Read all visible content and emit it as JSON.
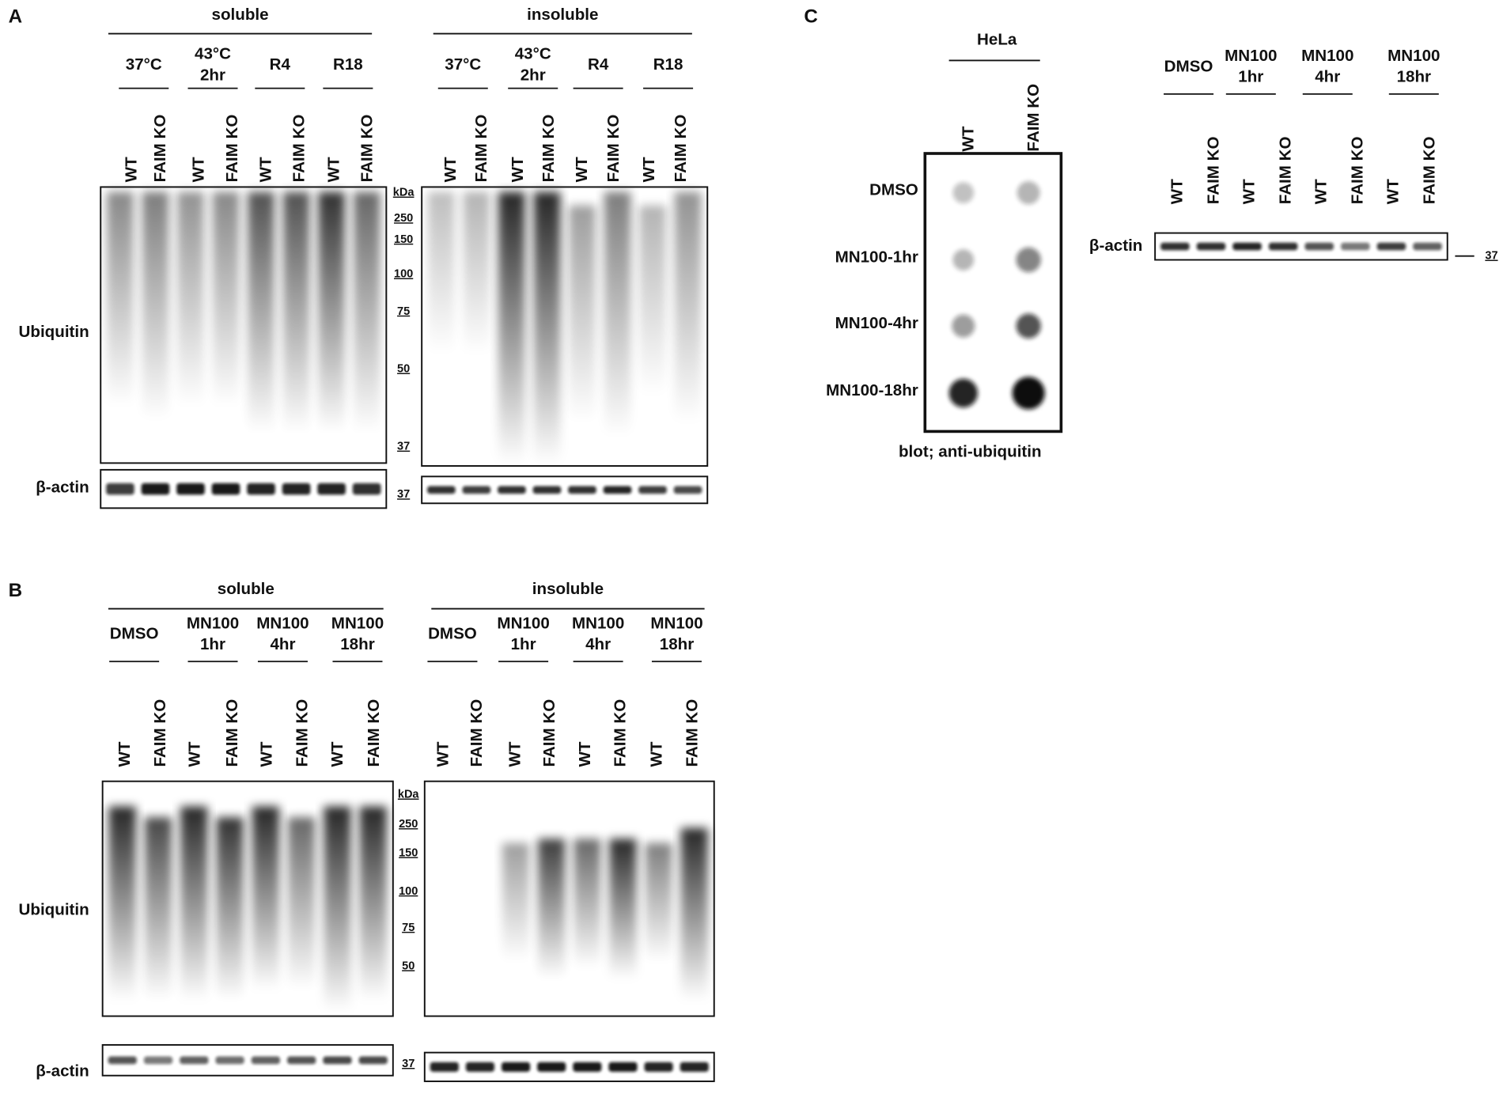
{
  "panel_a": {
    "label": "A",
    "blots": [
      {
        "title": "soluble",
        "conditions": [
          [
            "37°C"
          ],
          [
            "43°C",
            "2hr"
          ],
          [
            "R4"
          ],
          [
            "R18"
          ]
        ],
        "lanes": [
          "WT",
          "FAIM KO",
          "WT",
          "FAIM KO",
          "WT",
          "FAIM KO",
          "WT",
          "FAIM KO"
        ]
      },
      {
        "title": "insoluble",
        "conditions": [
          [
            "37°C"
          ],
          [
            "43°C",
            "2hr"
          ],
          [
            "R4"
          ],
          [
            "R18"
          ]
        ],
        "lanes": [
          "WT",
          "FAIM KO",
          "WT",
          "FAIM KO",
          "WT",
          "FAIM KO",
          "WT",
          "FAIM KO"
        ]
      }
    ],
    "rows": [
      "Ubiquitin",
      "β-actin"
    ],
    "kda": "kDa",
    "markers": [
      250,
      150,
      100,
      75,
      50,
      37
    ],
    "actin_marker": 37
  },
  "panel_b": {
    "label": "B",
    "blots": [
      {
        "title": "soluble",
        "conditions": [
          [
            "DMSO"
          ],
          [
            "MN100",
            "1hr"
          ],
          [
            "MN100",
            "4hr"
          ],
          [
            "MN100",
            "18hr"
          ]
        ],
        "lanes": [
          "WT",
          "FAIM KO",
          "WT",
          "FAIM KO",
          "WT",
          "FAIM KO",
          "WT",
          "FAIM KO"
        ]
      },
      {
        "title": "insoluble",
        "conditions": [
          [
            "DMSO"
          ],
          [
            "MN100",
            "1hr"
          ],
          [
            "MN100",
            "4hr"
          ],
          [
            "MN100",
            "18hr"
          ]
        ],
        "lanes": [
          "WT",
          "FAIM KO",
          "WT",
          "FAIM KO",
          "WT",
          "FAIM KO",
          "WT",
          "FAIM KO"
        ]
      }
    ],
    "rows": [
      "Ubiquitin",
      "β-actin"
    ],
    "kda": "kDa",
    "markers": [
      250,
      150,
      100,
      75,
      50
    ],
    "actin_marker": 37
  },
  "panel_c": {
    "label": "C",
    "dot_blot": {
      "title": "HeLa",
      "lanes": [
        "WT",
        "FAIM KO"
      ],
      "rows": [
        "DMSO",
        "MN100-1hr",
        "MN100-4hr",
        "MN100-18hr"
      ],
      "caption": "blot; anti-ubiquitin"
    },
    "western": {
      "conditions": [
        [
          "DMSO"
        ],
        [
          "MN100",
          "1hr"
        ],
        [
          "MN100",
          "4hr"
        ],
        [
          "MN100",
          "18hr"
        ]
      ],
      "lanes": [
        "WT",
        "FAIM KO",
        "WT",
        "FAIM KO",
        "WT",
        "FAIM KO",
        "WT",
        "FAIM KO"
      ],
      "row": "β-actin",
      "marker": 37
    }
  }
}
